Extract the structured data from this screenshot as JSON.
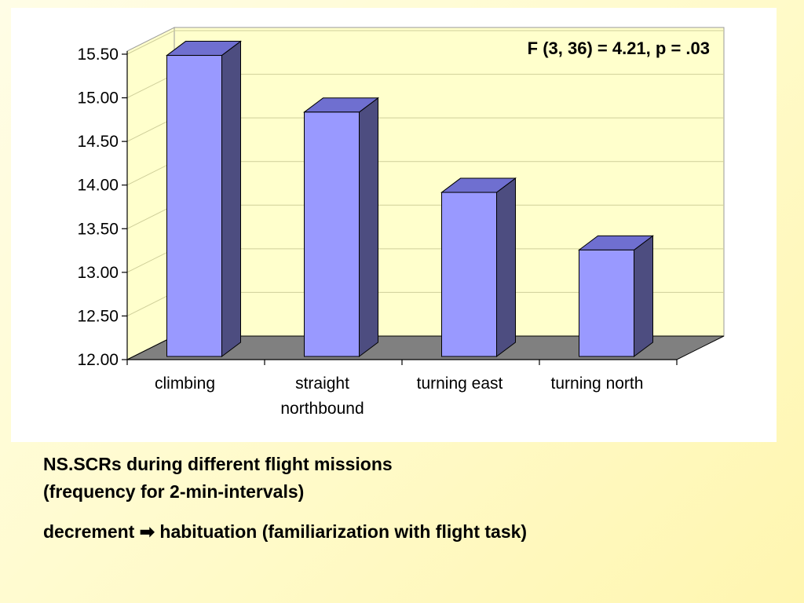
{
  "chart_data": {
    "type": "bar",
    "style": "3d-column",
    "categories": [
      [
        "climbing"
      ],
      [
        "straight",
        "northbound"
      ],
      [
        "turning east"
      ],
      [
        "turning north"
      ]
    ],
    "values": [
      15.45,
      14.8,
      13.88,
      13.22
    ],
    "yticks": [
      "12.00",
      "12.50",
      "13.00",
      "13.50",
      "14.00",
      "14.50",
      "15.00",
      "15.50"
    ],
    "ylim": [
      12.0,
      15.5
    ],
    "grid": true,
    "annotation": "F (3, 36) = 4.21, p = .03",
    "colors": {
      "bar_front": "#9999ff",
      "bar_side": "#4d4d80",
      "bar_top": "#6f6fd0",
      "plot_background": "#ffffcc",
      "floor": "#808080"
    }
  },
  "caption": {
    "line1": "NS.SCRs during different flight missions",
    "line2": "(frequency for 2-min-intervals)",
    "line3_start": "decrement",
    "arrow": "➡",
    "line3_end": "habituation (familiarization with flight task)"
  }
}
